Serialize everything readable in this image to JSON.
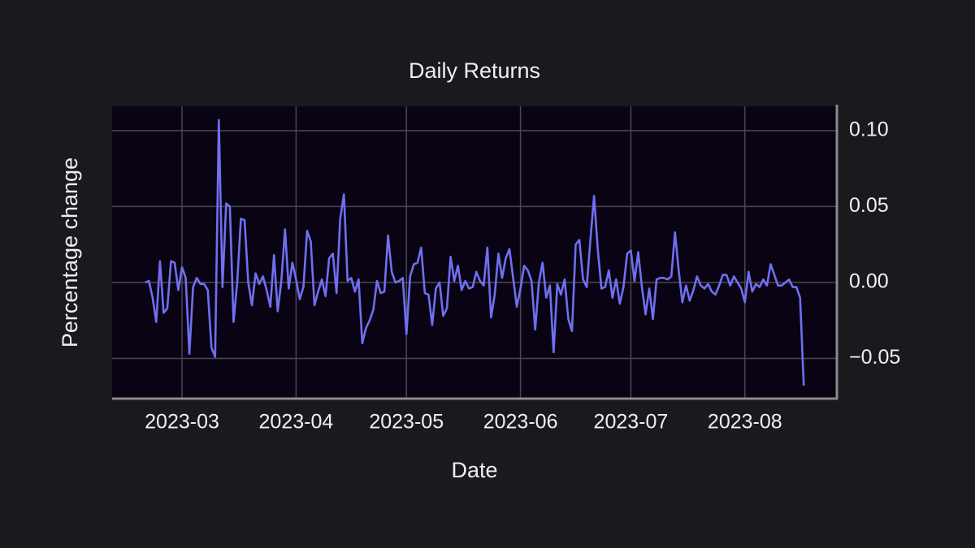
{
  "chart_data": {
    "type": "line",
    "title": "Daily Returns",
    "x_label": "Date",
    "y_label": "Percentage change",
    "x": [
      "2023-02-19",
      "2023-02-20",
      "2023-02-21",
      "2023-02-22",
      "2023-02-23",
      "2023-02-24",
      "2023-02-25",
      "2023-02-26",
      "2023-02-27",
      "2023-02-28",
      "2023-03-01",
      "2023-03-02",
      "2023-03-03",
      "2023-03-04",
      "2023-03-05",
      "2023-03-06",
      "2023-03-07",
      "2023-03-08",
      "2023-03-09",
      "2023-03-10",
      "2023-03-11",
      "2023-03-12",
      "2023-03-13",
      "2023-03-14",
      "2023-03-15",
      "2023-03-16",
      "2023-03-17",
      "2023-03-18",
      "2023-03-19",
      "2023-03-20",
      "2023-03-21",
      "2023-03-22",
      "2023-03-23",
      "2023-03-24",
      "2023-03-25",
      "2023-03-26",
      "2023-03-27",
      "2023-03-28",
      "2023-03-29",
      "2023-03-30",
      "2023-03-31",
      "2023-04-01",
      "2023-04-02",
      "2023-04-03",
      "2023-04-04",
      "2023-04-05",
      "2023-04-06",
      "2023-04-07",
      "2023-04-08",
      "2023-04-09",
      "2023-04-10",
      "2023-04-11",
      "2023-04-12",
      "2023-04-13",
      "2023-04-14",
      "2023-04-15",
      "2023-04-16",
      "2023-04-17",
      "2023-04-18",
      "2023-04-19",
      "2023-04-20",
      "2023-04-21",
      "2023-04-22",
      "2023-04-23",
      "2023-04-24",
      "2023-04-25",
      "2023-04-26",
      "2023-04-27",
      "2023-04-28",
      "2023-04-29",
      "2023-04-30",
      "2023-05-01",
      "2023-05-02",
      "2023-05-03",
      "2023-05-04",
      "2023-05-05",
      "2023-05-06",
      "2023-05-07",
      "2023-05-08",
      "2023-05-09",
      "2023-05-10",
      "2023-05-11",
      "2023-05-12",
      "2023-05-13",
      "2023-05-14",
      "2023-05-15",
      "2023-05-16",
      "2023-05-17",
      "2023-05-18",
      "2023-05-19",
      "2023-05-20",
      "2023-05-21",
      "2023-05-22",
      "2023-05-23",
      "2023-05-24",
      "2023-05-25",
      "2023-05-26",
      "2023-05-27",
      "2023-05-28",
      "2023-05-29",
      "2023-05-30",
      "2023-05-31",
      "2023-06-01",
      "2023-06-02",
      "2023-06-03",
      "2023-06-04",
      "2023-06-05",
      "2023-06-06",
      "2023-06-07",
      "2023-06-08",
      "2023-06-09",
      "2023-06-10",
      "2023-06-11",
      "2023-06-12",
      "2023-06-13",
      "2023-06-14",
      "2023-06-15",
      "2023-06-16",
      "2023-06-17",
      "2023-06-18",
      "2023-06-19",
      "2023-06-20",
      "2023-06-21",
      "2023-06-22",
      "2023-06-23",
      "2023-06-24",
      "2023-06-25",
      "2023-06-26",
      "2023-06-27",
      "2023-06-28",
      "2023-06-29",
      "2023-06-30",
      "2023-07-01",
      "2023-07-02",
      "2023-07-03",
      "2023-07-04",
      "2023-07-05",
      "2023-07-06",
      "2023-07-07",
      "2023-07-08",
      "2023-07-09",
      "2023-07-10",
      "2023-07-11",
      "2023-07-12",
      "2023-07-13",
      "2023-07-14",
      "2023-07-15",
      "2023-07-16",
      "2023-07-17",
      "2023-07-18",
      "2023-07-19",
      "2023-07-20",
      "2023-07-21",
      "2023-07-22",
      "2023-07-23",
      "2023-07-24",
      "2023-07-25",
      "2023-07-26",
      "2023-07-27",
      "2023-07-28",
      "2023-07-29",
      "2023-07-30",
      "2023-07-31",
      "2023-08-01",
      "2023-08-02",
      "2023-08-03",
      "2023-08-04",
      "2023-08-05",
      "2023-08-06",
      "2023-08-07",
      "2023-08-08",
      "2023-08-09",
      "2023-08-10",
      "2023-08-11",
      "2023-08-12",
      "2023-08-13",
      "2023-08-14",
      "2023-08-15",
      "2023-08-16",
      "2023-08-17"
    ],
    "series": [
      {
        "name": "Daily Returns",
        "color": "#6f6ff0",
        "values": [
          0.0,
          0.001,
          -0.01,
          -0.026,
          0.014,
          -0.02,
          -0.017,
          0.014,
          0.013,
          -0.005,
          0.01,
          0.003,
          -0.047,
          -0.003,
          0.003,
          -0.001,
          -0.001,
          -0.005,
          -0.043,
          -0.049,
          0.107,
          -0.003,
          0.052,
          0.05,
          -0.026,
          0.0,
          0.042,
          0.041,
          0.0,
          -0.015,
          0.006,
          -0.001,
          0.004,
          -0.005,
          -0.016,
          0.018,
          -0.019,
          0.001,
          0.035,
          -0.004,
          0.013,
          0.002,
          -0.011,
          -0.003,
          0.034,
          0.027,
          -0.015,
          -0.006,
          0.002,
          -0.009,
          0.016,
          0.019,
          -0.007,
          0.042,
          0.058,
          0.001,
          0.003,
          -0.006,
          0.002,
          -0.04,
          -0.03,
          -0.025,
          -0.018,
          0.001,
          -0.007,
          -0.006,
          0.031,
          0.007,
          0.0,
          0.001,
          0.003,
          -0.034,
          0.004,
          0.012,
          0.013,
          0.023,
          -0.007,
          -0.008,
          -0.028,
          -0.004,
          0.0,
          -0.022,
          -0.017,
          0.017,
          0.001,
          0.011,
          -0.005,
          0.001,
          -0.004,
          -0.003,
          0.007,
          0.001,
          -0.002,
          0.023,
          -0.023,
          -0.008,
          0.019,
          0.003,
          0.016,
          0.022,
          0.003,
          -0.016,
          -0.004,
          0.011,
          0.008,
          0.001,
          -0.031,
          0.0,
          0.013,
          -0.01,
          -0.002,
          -0.046,
          -0.001,
          -0.008,
          0.002,
          -0.024,
          -0.032,
          0.025,
          0.028,
          0.002,
          -0.003,
          0.028,
          0.057,
          0.022,
          -0.004,
          -0.003,
          0.008,
          -0.01,
          0.002,
          -0.014,
          -0.003,
          0.019,
          0.021,
          0.001,
          0.02,
          -0.003,
          -0.021,
          -0.004,
          -0.024,
          0.002,
          0.003,
          0.003,
          0.002,
          0.004,
          0.033,
          0.008,
          -0.013,
          -0.002,
          -0.012,
          -0.005,
          0.004,
          -0.002,
          -0.004,
          -0.001,
          -0.006,
          -0.008,
          -0.002,
          0.005,
          0.005,
          -0.002,
          0.004,
          0.0,
          -0.004,
          -0.013,
          0.007,
          -0.006,
          -0.001,
          -0.003,
          0.002,
          -0.002,
          0.012,
          0.005,
          -0.002,
          -0.002,
          0.0,
          0.002,
          -0.003,
          -0.003,
          -0.01,
          -0.068
        ]
      }
    ],
    "xlim": [
      "2023-02-10",
      "2023-08-26"
    ],
    "xticks": [
      {
        "value": "2023-03-01",
        "label": "2023-03"
      },
      {
        "value": "2023-04-01",
        "label": "2023-04"
      },
      {
        "value": "2023-05-01",
        "label": "2023-05"
      },
      {
        "value": "2023-06-01",
        "label": "2023-06"
      },
      {
        "value": "2023-07-01",
        "label": "2023-07"
      },
      {
        "value": "2023-08-01",
        "label": "2023-08"
      }
    ],
    "ylim": [
      -0.0765,
      0.116
    ],
    "yticks": [
      {
        "value": -0.05,
        "label": "−0.05"
      },
      {
        "value": 0,
        "label": "0.00"
      },
      {
        "value": 0.05,
        "label": "0.05"
      },
      {
        "value": 0.1,
        "label": "0.10"
      }
    ],
    "grid": true
  }
}
